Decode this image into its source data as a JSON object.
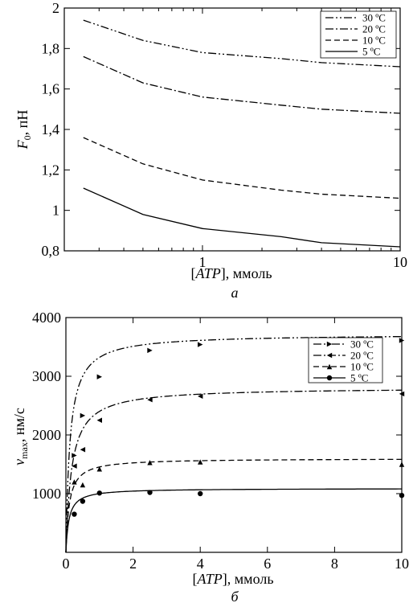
{
  "chart_data": [
    {
      "type": "line",
      "panel_label": "а",
      "xlabel": "[ATP], ммоль",
      "ylabel": "F₀, пН",
      "xscale": "log",
      "xlim": [
        0.2,
        10
      ],
      "ylim": [
        0.8,
        2
      ],
      "xticks": [
        1,
        10
      ],
      "xtick_labels": [
        "1",
        "10"
      ],
      "yticks": [
        0.8,
        1,
        1.2,
        1.4,
        1.6,
        1.8,
        2
      ],
      "ytick_labels": [
        "0,8",
        "1",
        "1,2",
        "1,4",
        "1,6",
        "1,8",
        "2"
      ],
      "grid": false,
      "legend_position": "top-right",
      "series": [
        {
          "name": "30 ºC",
          "style": "dash-dot-dot",
          "x": [
            0.25,
            0.5,
            1,
            2.5,
            4,
            10
          ],
          "y": [
            1.94,
            1.84,
            1.78,
            1.75,
            1.73,
            1.71
          ]
        },
        {
          "name": "20 ºC",
          "style": "dash-dot",
          "x": [
            0.25,
            0.5,
            1,
            2.5,
            4,
            10
          ],
          "y": [
            1.76,
            1.63,
            1.56,
            1.52,
            1.5,
            1.48
          ]
        },
        {
          "name": "10 ºC",
          "style": "dashed",
          "x": [
            0.25,
            0.5,
            1,
            2.5,
            4,
            10
          ],
          "y": [
            1.36,
            1.23,
            1.15,
            1.1,
            1.08,
            1.06
          ]
        },
        {
          "name": "5 ºC",
          "style": "solid",
          "x": [
            0.25,
            0.5,
            1,
            2.5,
            4,
            10
          ],
          "y": [
            1.11,
            0.98,
            0.91,
            0.87,
            0.84,
            0.82
          ]
        }
      ]
    },
    {
      "type": "scatter",
      "panel_label": "б",
      "xlabel": "[ATP], ммоль",
      "ylabel": "vmax, нм/с",
      "xlim": [
        0,
        10
      ],
      "ylim": [
        0,
        4000
      ],
      "xticks": [
        0,
        2,
        4,
        6,
        8,
        10
      ],
      "xtick_labels": [
        "0",
        "2",
        "4",
        "6",
        "8",
        "10"
      ],
      "yticks": [
        1000,
        2000,
        3000,
        4000
      ],
      "ytick_labels": [
        "1000",
        "2000",
        "3000",
        "4000"
      ],
      "grid": false,
      "legend_position": "top-right",
      "series": [
        {
          "name": "30 ºC",
          "style": "dash-dot-dot",
          "marker": "triangle-right",
          "x": [
            0.25,
            0.5,
            1,
            2.5,
            4,
            10
          ],
          "y": [
            1650,
            2330,
            2990,
            3440,
            3540,
            3610
          ],
          "fit": {
            "vmax": 3720,
            "km": 0.12
          }
        },
        {
          "name": "20 ºC",
          "style": "dash-dot",
          "marker": "triangle-left",
          "x": [
            0.25,
            0.5,
            1,
            2.5,
            4,
            10
          ],
          "y": [
            1470,
            1750,
            2250,
            2600,
            2660,
            2700
          ],
          "fit": {
            "vmax": 2810,
            "km": 0.17
          }
        },
        {
          "name": "10 ºC",
          "style": "dashed",
          "marker": "triangle-up",
          "x": [
            0.25,
            0.5,
            1,
            2.5,
            4,
            10
          ],
          "y": [
            1200,
            1150,
            1420,
            1530,
            1540,
            1500
          ],
          "fit": {
            "vmax": 1600,
            "km": 0.1
          }
        },
        {
          "name": "5 ºC",
          "style": "solid",
          "marker": "circle",
          "x": [
            0.25,
            0.5,
            1,
            2.5,
            4,
            10
          ],
          "y": [
            650,
            870,
            1010,
            1020,
            1000,
            970
          ],
          "fit": {
            "vmax": 1090,
            "km": 0.09
          }
        }
      ]
    }
  ]
}
